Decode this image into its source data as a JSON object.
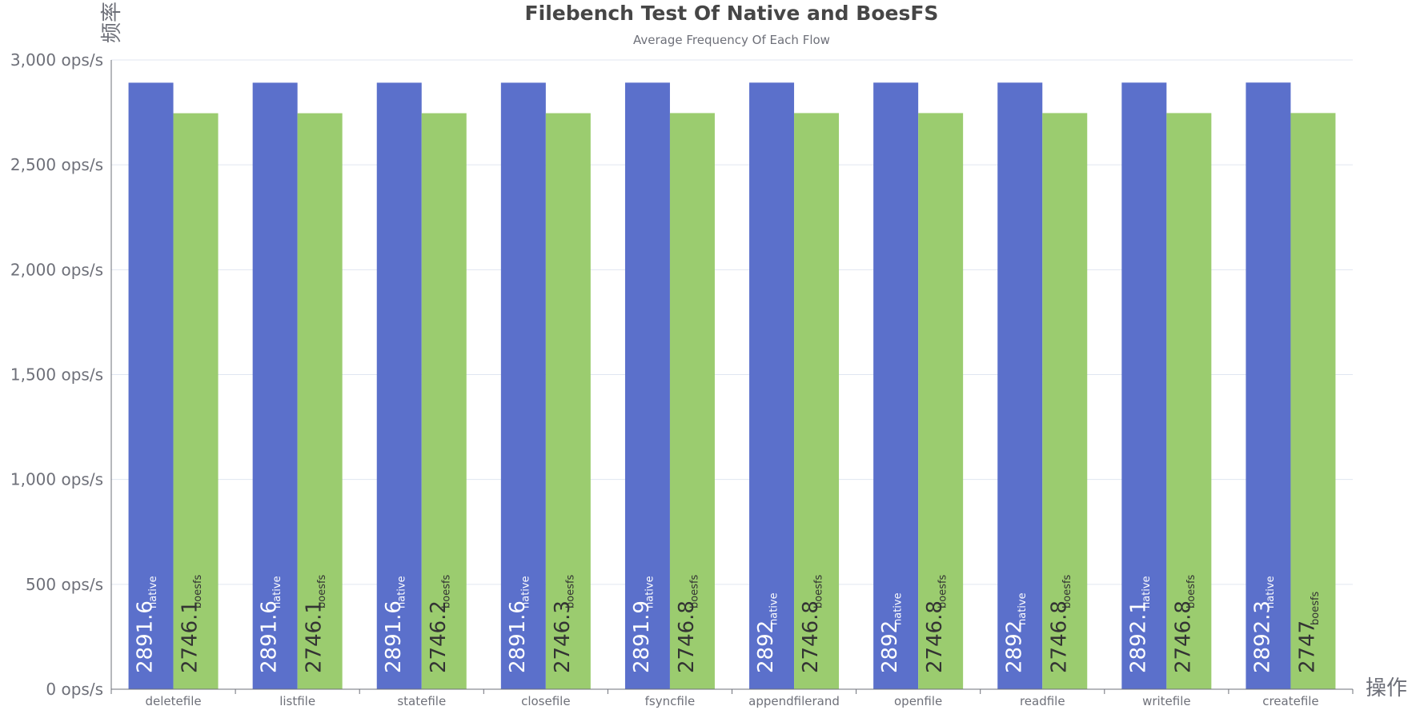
{
  "chart_data": {
    "type": "bar",
    "title": "Filebench Test Of Native and BoesFS",
    "subtitle": "Average Frequency Of Each Flow",
    "xlabel": "操作",
    "ylabel": "频率",
    "categories": [
      "deletefile",
      "listfile",
      "statefile",
      "closefile",
      "fsyncfile",
      "appendfilerand",
      "openfile",
      "readfile",
      "writefile",
      "createfile"
    ],
    "series": [
      {
        "name": "native",
        "color": "#5b70cb",
        "label_color": "#ffffff",
        "values": [
          2891.6,
          2891.6,
          2891.6,
          2891.6,
          2891.9,
          2892,
          2892,
          2892,
          2892.1,
          2892.3
        ]
      },
      {
        "name": "boesfs",
        "color": "#9bcc6f",
        "label_color": "#333333",
        "values": [
          2746.1,
          2746.1,
          2746.2,
          2746.3,
          2746.8,
          2746.8,
          2746.8,
          2746.8,
          2746.8,
          2747
        ]
      }
    ],
    "ylim": [
      0,
      3000
    ],
    "y_ticks": [
      0,
      500,
      1000,
      1500,
      2000,
      2500,
      3000
    ],
    "y_tick_labels": [
      "0 ops/s",
      "500 ops/s",
      "1,000 ops/s",
      "1,500 ops/s",
      "2,000 ops/s",
      "2,500 ops/s",
      "3,000 ops/s"
    ],
    "grid": true,
    "legend": "none",
    "axis_color": "#6e7079",
    "grid_color": "#e0e6f1"
  }
}
